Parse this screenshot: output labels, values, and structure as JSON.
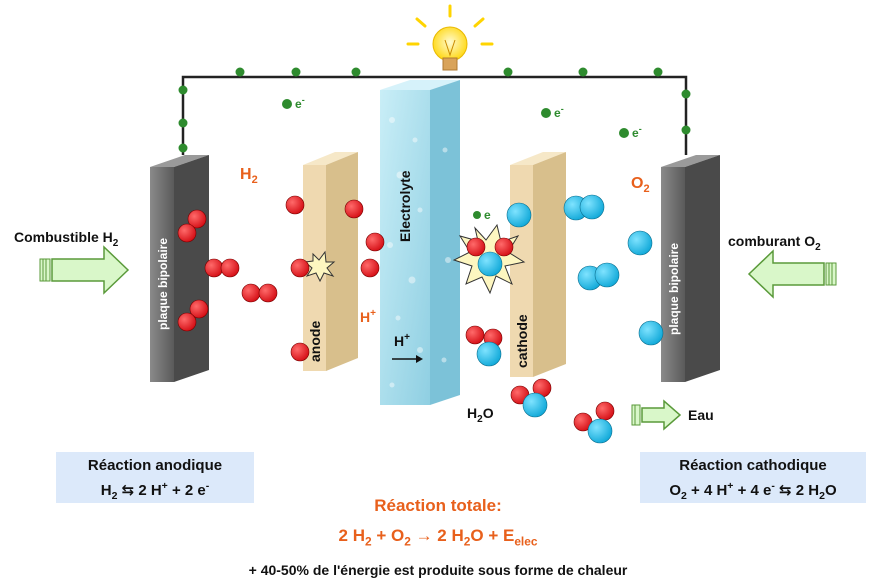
{
  "labels": {
    "combustible": "Combustible H",
    "combustible_sub": "2",
    "comburant": "comburant O",
    "comburant_sub": "2",
    "h2": "H",
    "h2_sub": "2",
    "o2": "O",
    "o2_sub": "2",
    "plaque_left": "plaque bipolaire",
    "plaque_right": "plaque bipolaire",
    "anode": "anode",
    "cathode": "cathode",
    "electrolyte": "Electrolyte",
    "hplus_anode": "H",
    "hplus_anode_sup": "+",
    "hplus_mid": "H",
    "hplus_mid_sup": "+",
    "electron": "e",
    "electron_sup": "-",
    "water": "H",
    "water_sub": "2",
    "water_end": "O",
    "eau": "Eau"
  },
  "anodic": {
    "title": "Réaction anodique",
    "eq_p1": "H",
    "eq_sub1": "2",
    "eq_p2": " ⇆ 2 H",
    "eq_sup1": "+",
    "eq_p3": " + 2 e",
    "eq_sup2": "-"
  },
  "cathodic": {
    "title": "Réaction cathodique",
    "eq_p1": "O",
    "eq_sub1": "2",
    "eq_p2": " + 4 H",
    "eq_sup1": "+",
    "eq_p3": " + 4 e",
    "eq_sup2": "-",
    "eq_p4": " ⇆ 2 H",
    "eq_sub2": "2",
    "eq_p5": "O"
  },
  "total": {
    "title": "Réaction totale:",
    "p1": "2 H",
    "sub1": "2",
    "p2": " + O",
    "sub2": "2",
    "p3": " → 2 H",
    "sub3": "2",
    "p4": "O + E",
    "sub4": "elec"
  },
  "note": "+ 40-50% de l'énergie est produite sous forme de chaleur",
  "colors": {
    "hydrogen": "#e3131b",
    "oxygen": "#1ec0ef",
    "electron": "#2e8b2e",
    "plate": "#6d6d6d",
    "electrode": "#efd9b0",
    "electrolyte": "#a8dcea",
    "orange_text": "#e8601c",
    "reaction_box": "#dce9fa",
    "arrow_fill": "#d9f7c9",
    "arrow_stroke": "#5a9a3a"
  }
}
